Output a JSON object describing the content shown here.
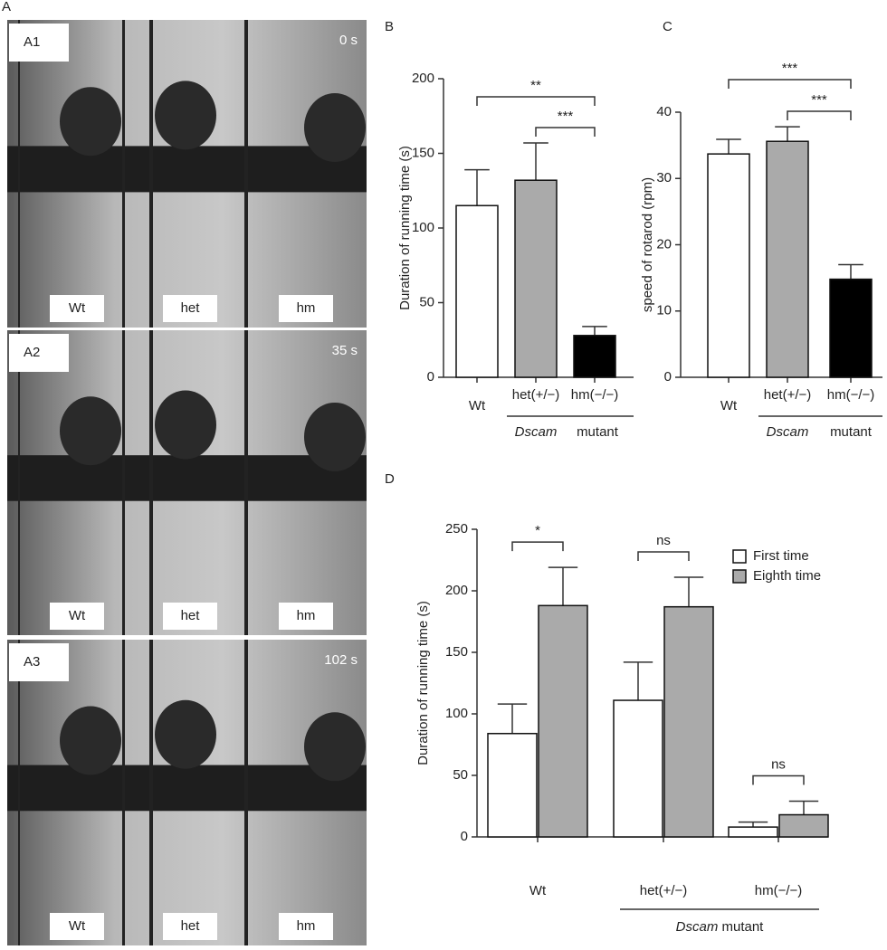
{
  "panel_labels": [
    "A",
    "B",
    "C",
    "D"
  ],
  "photos": [
    {
      "label": "A1",
      "time": "0 s",
      "mice": [
        "Wt",
        "het",
        "hm"
      ]
    },
    {
      "label": "A2",
      "time": "35 s",
      "mice": [
        "Wt",
        "het",
        "hm"
      ]
    },
    {
      "label": "A3",
      "time": "102 s",
      "mice": [
        "Wt",
        "het",
        "hm"
      ]
    }
  ],
  "chart_data": [
    {
      "type": "bar",
      "ylabel": "Duration of running time (s)",
      "categories": [
        "Wt",
        "het(+/−)",
        "hm(−/−)"
      ],
      "group_label_italic": "Dscam",
      "group_label_rest": "mutant",
      "values": [
        115,
        132,
        28
      ],
      "errors": [
        24,
        25,
        6
      ],
      "colors": [
        "#ffffff",
        "#aaaaaa",
        "#000000"
      ],
      "ylim": [
        0,
        200
      ],
      "yticks": [
        0,
        50,
        100,
        150,
        200
      ],
      "brackets": [
        {
          "between": [
            "Wt",
            "hm(−/−)"
          ],
          "label": "**"
        },
        {
          "between": [
            "het(+/−)",
            "hm(−/−)"
          ],
          "label": "***"
        }
      ]
    },
    {
      "type": "bar",
      "ylabel": "speed of rotarod (rpm)",
      "categories": [
        "Wt",
        "het(+/−)",
        "hm(−/−)"
      ],
      "group_label_italic": "Dscam",
      "group_label_rest": "mutant",
      "values": [
        33.7,
        35.6,
        14.8
      ],
      "errors": [
        2.2,
        2.2,
        2.2
      ],
      "colors": [
        "#ffffff",
        "#aaaaaa",
        "#000000"
      ],
      "ylim": [
        0,
        40
      ],
      "yticks": [
        0,
        10,
        20,
        30,
        40
      ],
      "brackets": [
        {
          "between": [
            "Wt",
            "hm(−/−)"
          ],
          "label": "***"
        },
        {
          "between": [
            "het(+/−)",
            "hm(−/−)"
          ],
          "label": "***"
        }
      ]
    },
    {
      "type": "grouped_bar",
      "ylabel": "Duration of running time (s)",
      "categories": [
        "Wt",
        "het(+/−)",
        "hm(−/−)"
      ],
      "group_label_italic": "Dscam",
      "group_label_rest": "mutant",
      "series": [
        {
          "name": "First time",
          "color": "#ffffff",
          "values": [
            84,
            111,
            8
          ],
          "errors": [
            24,
            31,
            4
          ]
        },
        {
          "name": "Eighth time",
          "color": "#aaaaaa",
          "values": [
            188,
            187,
            18
          ],
          "errors": [
            31,
            24,
            11
          ]
        }
      ],
      "ylim": [
        0,
        250
      ],
      "yticks": [
        0,
        50,
        100,
        150,
        200,
        250
      ],
      "group_brackets": [
        "*",
        "ns",
        "ns"
      ]
    }
  ]
}
